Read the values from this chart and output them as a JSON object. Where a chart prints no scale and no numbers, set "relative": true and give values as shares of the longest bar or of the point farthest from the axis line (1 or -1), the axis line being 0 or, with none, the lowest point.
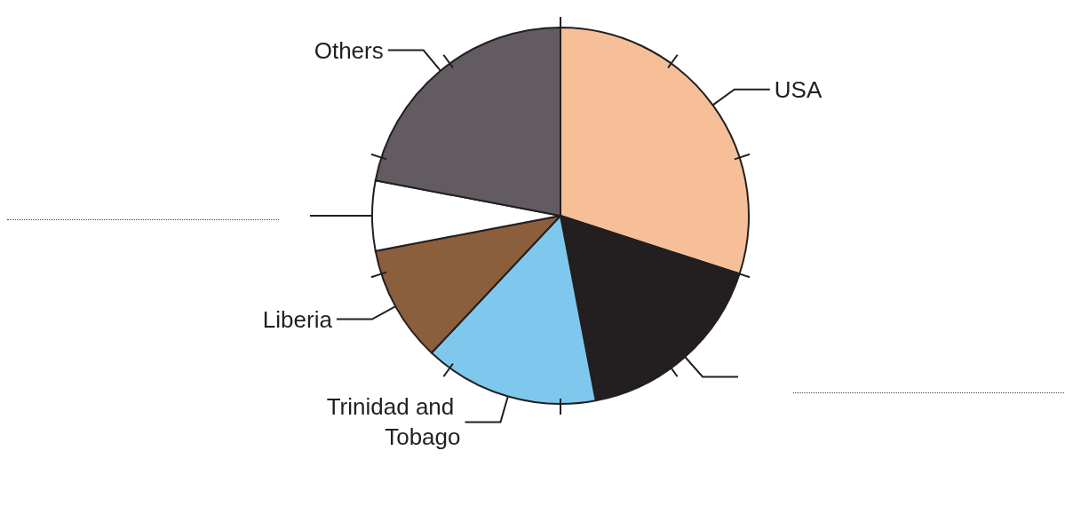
{
  "chart_data": {
    "type": "pie",
    "relative": true,
    "categories": [
      "USA",
      null,
      "Trinidad and Tobago",
      "Liberia",
      null,
      "Others"
    ],
    "values": [
      30,
      17,
      15,
      10,
      6,
      22
    ],
    "colors": [
      "#f6bf97",
      "#231f20",
      "#7ec8ee",
      "#8b5e3c",
      "#ffffff",
      "#625b62"
    ]
  }
}
